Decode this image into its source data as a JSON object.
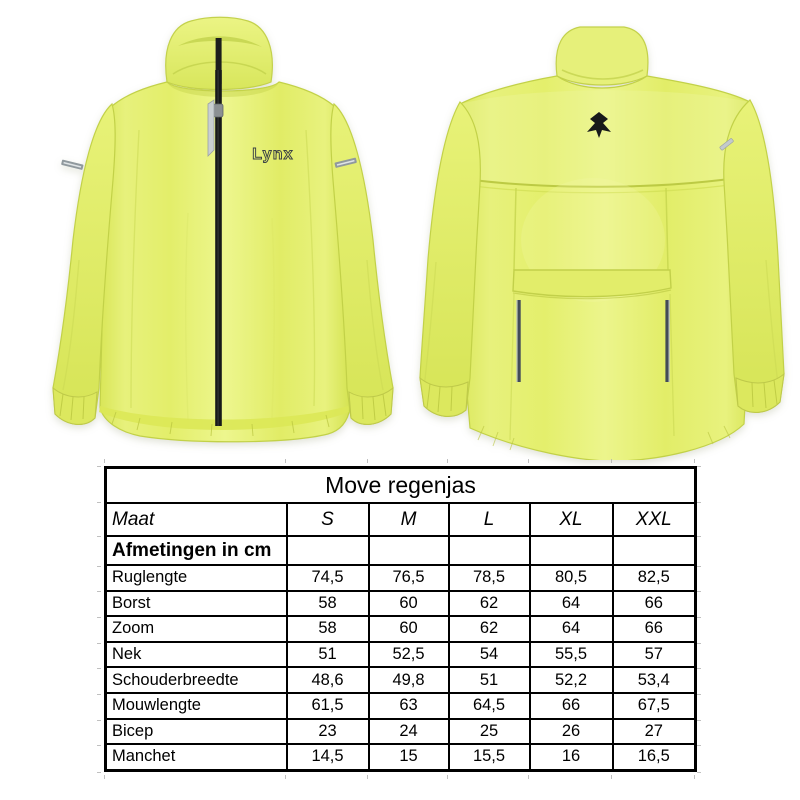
{
  "jackets": {
    "brand": "Lynx",
    "front": {
      "logo_text": "Lynx"
    },
    "back": {
      "emblem": "lynx-head"
    }
  },
  "colors": {
    "jacket_hi_vis_yellow": "#e4ef6e",
    "jacket_highlight": "#eef692",
    "jacket_shadow": "#ccd955",
    "zipper_black": "#17191a",
    "reflective_silver": "#c9cfd1",
    "reflective_dark": "#434b57",
    "logo_dark": "#3b4145",
    "table_border": "#000000"
  },
  "size_table": {
    "title": "Move regenjas",
    "size_col_label": "Maat",
    "sizes": [
      "S",
      "M",
      "L",
      "XL",
      "XXL"
    ],
    "section_header": "Afmetingen in cm",
    "rows": [
      {
        "label": "Ruglengte",
        "values": [
          "74,5",
          "76,5",
          "78,5",
          "80,5",
          "82,5"
        ]
      },
      {
        "label": "Borst",
        "values": [
          "58",
          "60",
          "62",
          "64",
          "66"
        ]
      },
      {
        "label": "Zoom",
        "values": [
          "58",
          "60",
          "62",
          "64",
          "66"
        ]
      },
      {
        "label": "Nek",
        "values": [
          "51",
          "52,5",
          "54",
          "55,5",
          "57"
        ]
      },
      {
        "label": "Schouderbreedte",
        "values": [
          "48,6",
          "49,8",
          "51",
          "52,2",
          "53,4"
        ]
      },
      {
        "label": "Mouwlengte",
        "values": [
          "61,5",
          "63",
          "64,5",
          "66",
          "67,5"
        ]
      },
      {
        "label": "Bicep",
        "values": [
          "23",
          "24",
          "25",
          "26",
          "27"
        ]
      },
      {
        "label": "Manchet",
        "values": [
          "14,5",
          "15",
          "15,5",
          "16",
          "16,5"
        ]
      }
    ]
  }
}
